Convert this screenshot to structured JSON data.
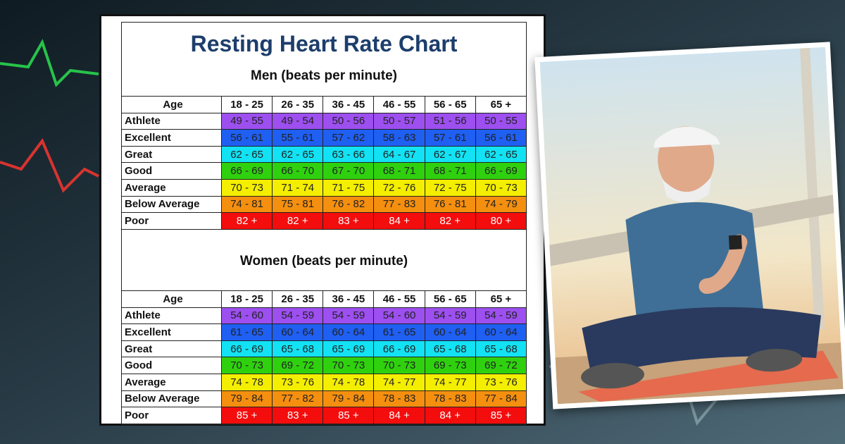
{
  "title": "Resting Heart Rate Chart",
  "tables": [
    {
      "heading": "Men (beats per minute)",
      "header": [
        "Age",
        "18 - 25",
        "26 - 35",
        "36 - 45",
        "46 - 55",
        "56 - 65",
        "65 +"
      ],
      "rows": [
        [
          "Athlete",
          "49 - 55",
          "49 - 54",
          "50 - 56",
          "50 - 57",
          "51 - 56",
          "50 - 55"
        ],
        [
          "Excellent",
          "56 - 61",
          "55 - 61",
          "57 - 62",
          "58 - 63",
          "57 - 61",
          "56 - 61"
        ],
        [
          "Great",
          "62 - 65",
          "62 - 65",
          "63 - 66",
          "64 - 67",
          "62 - 67",
          "62 - 65"
        ],
        [
          "Good",
          "66 - 69",
          "66 - 70",
          "67 - 70",
          "68 - 71",
          "68 - 71",
          "66 - 69"
        ],
        [
          "Average",
          "70 - 73",
          "71 - 74",
          "71 - 75",
          "72 - 76",
          "72 - 75",
          "70 - 73"
        ],
        [
          "Below Average",
          "74 - 81",
          "75 - 81",
          "76 - 82",
          "77 - 83",
          "76 - 81",
          "74 - 79"
        ],
        [
          "Poor",
          "82 +",
          "82 +",
          "83 +",
          "84 +",
          "82 +",
          "80 +"
        ]
      ]
    },
    {
      "heading": "Women (beats per minute)",
      "header": [
        "Age",
        "18 - 25",
        "26 - 35",
        "36 - 45",
        "46 - 55",
        "56 - 65",
        "65 +"
      ],
      "rows": [
        [
          "Athlete",
          "54 - 60",
          "54 - 59",
          "54 - 59",
          "54 - 60",
          "54 - 59",
          "54 - 59"
        ],
        [
          "Excellent",
          "61 - 65",
          "60 - 64",
          "60 - 64",
          "61 - 65",
          "60 - 64",
          "60 - 64"
        ],
        [
          "Great",
          "66 - 69",
          "65 - 68",
          "65 - 69",
          "66 - 69",
          "65 - 68",
          "65 - 68"
        ],
        [
          "Good",
          "70 - 73",
          "69 - 72",
          "70 - 73",
          "70 - 73",
          "69 - 73",
          "69 - 72"
        ],
        [
          "Average",
          "74 - 78",
          "73 - 76",
          "74 - 78",
          "74 - 77",
          "74 - 77",
          "73 - 76"
        ],
        [
          "Below Average",
          "79 - 84",
          "77 - 82",
          "79 - 84",
          "78 - 83",
          "78 - 83",
          "77 - 84"
        ],
        [
          "Poor",
          "85 +",
          "83 +",
          "85 +",
          "84 +",
          "84 +",
          "85 +"
        ]
      ]
    }
  ]
}
